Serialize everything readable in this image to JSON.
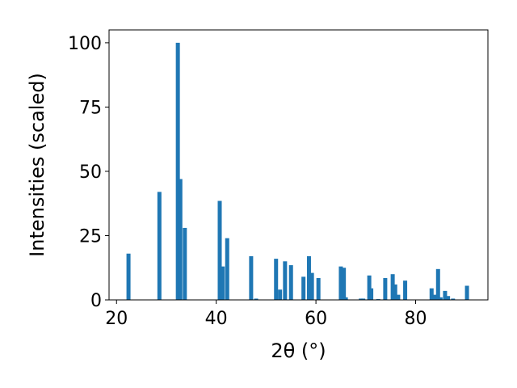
{
  "chart_data": {
    "type": "bar",
    "title": "",
    "xlabel": "2θ (°)",
    "ylabel": "Intensities (scaled)",
    "xlim": [
      18.5,
      94.5
    ],
    "ylim": [
      0,
      105
    ],
    "xticks": [
      20,
      40,
      60,
      80
    ],
    "yticks": [
      0,
      25,
      50,
      75,
      100
    ],
    "grid": false,
    "legend": "none",
    "bar_color": "#1f77b4",
    "x": [
      22.4,
      28.6,
      32.3,
      32.8,
      33.7,
      40.7,
      41.3,
      42.2,
      47.0,
      48.0,
      52.0,
      52.8,
      53.8,
      55.0,
      57.5,
      58.6,
      59.2,
      60.5,
      65.0,
      65.6,
      66.0,
      69.0,
      69.5,
      70.7,
      71.1,
      72.5,
      73.9,
      75.4,
      75.9,
      76.5,
      77.9,
      83.2,
      83.8,
      84.5,
      85.0,
      85.9,
      86.5,
      87.5,
      90.3
    ],
    "values": [
      18,
      42,
      100,
      47,
      28,
      38.5,
      13,
      24,
      17,
      0.5,
      16,
      4,
      15,
      13.5,
      9,
      17,
      10.5,
      8.5,
      13,
      12.5,
      1,
      0.5,
      0.5,
      9.5,
      4.5,
      0.3,
      8.5,
      10,
      6,
      2,
      7.5,
      4.5,
      2,
      12,
      1,
      3.5,
      1.5,
      0.5,
      5.5
    ]
  }
}
